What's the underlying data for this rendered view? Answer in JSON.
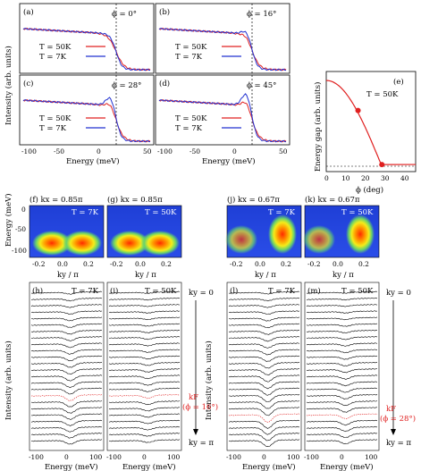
{
  "edc_panels": [
    {
      "letter": "(a)",
      "phi": "ϕ = 0°"
    },
    {
      "letter": "(b)",
      "phi": "ϕ = 16°"
    },
    {
      "letter": "(c)",
      "phi": "ϕ = 28°"
    },
    {
      "letter": "(d)",
      "phi": "ϕ = 45°"
    }
  ],
  "edc_legend": {
    "hot": "T = 50K",
    "cold": "T = 7K"
  },
  "edc_axes": {
    "ylabel": "Intensity (arb. units)",
    "xlabel": "Energy (meV)",
    "xticks": [
      "-100",
      "-50",
      "0",
      "50"
    ]
  },
  "gap_panel": {
    "letter": "(e)",
    "temp": "T = 50K",
    "ylabel": "Energy gap (arb. units)",
    "xlabel": "ϕ (deg)",
    "xticks": [
      "0",
      "10",
      "20",
      "30",
      "40"
    ]
  },
  "map_panels": [
    {
      "letter": "(f)",
      "kx": "kx = 0.85π",
      "temp": "T = 7K"
    },
    {
      "letter": "(g)",
      "kx": "kx = 0.85π",
      "temp": "T = 50K"
    },
    {
      "letter": "(j)",
      "kx": "kx = 0.67π",
      "temp": "T = 7K"
    },
    {
      "letter": "(k)",
      "kx": "kx = 0.67π",
      "temp": "T = 50K"
    }
  ],
  "map_axes": {
    "ylabel": "Energy (meV)",
    "xlabel": "ky / π",
    "yticks": [
      "0",
      "-50",
      "-100"
    ],
    "xticks": [
      "-0.2",
      "0.0",
      "0.2"
    ]
  },
  "stack_panels": [
    {
      "letter": "(h)",
      "temp": "T = 7K"
    },
    {
      "letter": "(i)",
      "temp": "T = 50K"
    },
    {
      "letter": "(l)",
      "temp": "T = 7K"
    },
    {
      "letter": "(m)",
      "temp": "T = 50K"
    }
  ],
  "stack_axes": {
    "ylabel": "Intensity (arb. units)",
    "xlabel": "Energy (meV)",
    "xticks": [
      "-100",
      "0",
      "100"
    ]
  },
  "stack_annotations": {
    "left_top": "ky = 0",
    "left_bottom": "ky = π",
    "left_kf": "kF",
    "left_kf_phi": "(ϕ = 16°)",
    "right_top": "ky = 0",
    "right_bottom": "ky = π",
    "right_kf": "kF",
    "right_kf_phi": "(ϕ = 28°)"
  },
  "chart_data": [
    {
      "type": "line",
      "panel": "(e)",
      "title": "",
      "xlabel": "ϕ (deg)",
      "ylabel": "Energy gap (arb. units)",
      "xlim": [
        0,
        45
      ],
      "series": [
        {
          "name": "",
          "x": [
            0,
            16,
            28,
            45
          ],
          "values": [
            1.0,
            0.65,
            0.02,
            0.02
          ]
        }
      ]
    }
  ]
}
